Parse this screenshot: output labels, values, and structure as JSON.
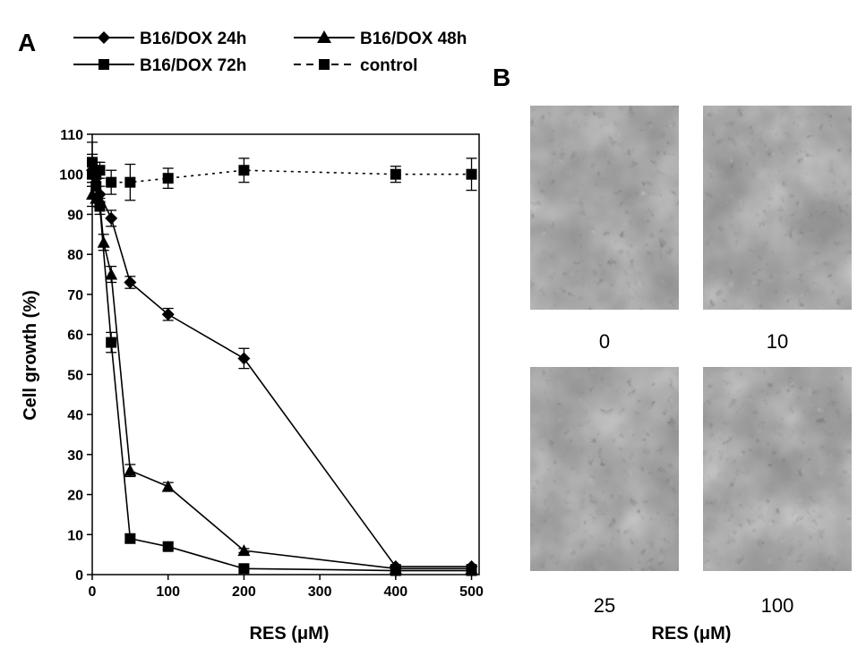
{
  "panels": {
    "a_label": "A",
    "b_label": "B"
  },
  "chart_data": {
    "type": "line",
    "xlabel": "RES (μM)",
    "ylabel": "Cell growth (%)",
    "xlim": [
      0,
      510
    ],
    "ylim": [
      0,
      110
    ],
    "x_ticks": [
      0,
      100,
      200,
      300,
      400,
      500
    ],
    "y_ticks": [
      0,
      10,
      20,
      30,
      40,
      50,
      60,
      70,
      80,
      90,
      100,
      110
    ],
    "grid": false,
    "legend_position": "top",
    "series": [
      {
        "name": "B16/DOX 24h",
        "marker": "diamond",
        "dash": "solid",
        "x": [
          0,
          5,
          10,
          25,
          50,
          100,
          200,
          400,
          500
        ],
        "y": [
          101,
          99,
          95,
          89,
          73,
          65,
          54,
          2,
          2
        ],
        "err": [
          4,
          3,
          2,
          2,
          1.5,
          1.5,
          2.5,
          0.5,
          0.5
        ]
      },
      {
        "name": "B16/DOX 48h",
        "marker": "triangle",
        "dash": "solid",
        "x": [
          0,
          5,
          10,
          15,
          25,
          50,
          100,
          200,
          400,
          500
        ],
        "y": [
          95,
          94,
          93,
          83,
          75,
          26,
          22,
          6,
          1.5,
          1.5
        ],
        "err": [
          3,
          2,
          2,
          2,
          2,
          1.5,
          1,
          0.5,
          0.5,
          0.5
        ]
      },
      {
        "name": "B16/DOX 72h",
        "marker": "square",
        "dash": "solid",
        "x": [
          0,
          5,
          10,
          25,
          50,
          100,
          200,
          400,
          500
        ],
        "y": [
          100,
          97,
          92,
          58,
          9,
          7,
          1.5,
          1,
          1
        ],
        "err": [
          3,
          2,
          2,
          2.5,
          1,
          0.8,
          0.5,
          0.5,
          0.5
        ]
      },
      {
        "name": "control",
        "marker": "square",
        "dash": "dotted",
        "x": [
          0,
          5,
          10,
          25,
          50,
          100,
          200,
          400,
          500
        ],
        "y": [
          103,
          100,
          101,
          98,
          98,
          99,
          101,
          100,
          100
        ],
        "err": [
          5,
          3,
          2,
          3,
          4.5,
          2.5,
          3,
          2,
          4
        ]
      }
    ]
  },
  "micrographs": {
    "xlabel": "RES (μM)",
    "items": [
      {
        "label": "0"
      },
      {
        "label": "10"
      },
      {
        "label": "25"
      },
      {
        "label": "100"
      }
    ]
  }
}
